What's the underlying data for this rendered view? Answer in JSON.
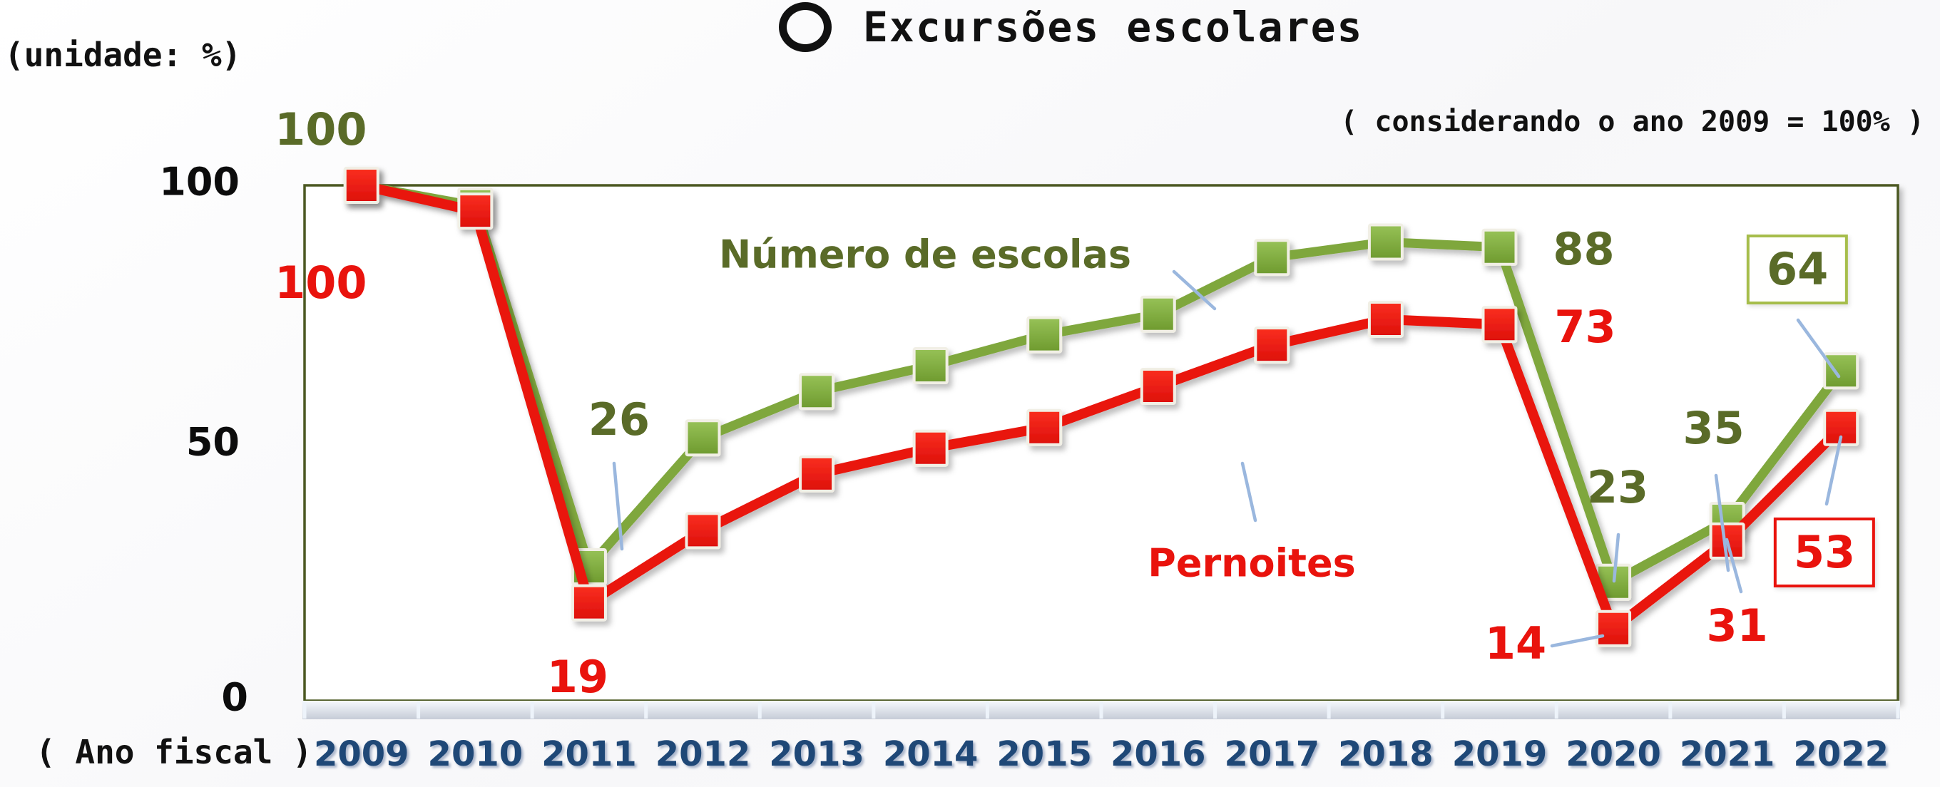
{
  "header": {
    "title_icon": "circle-icon",
    "title": "Excursões escolares",
    "unit_label": "(unidade: %)",
    "baseline_note": "( considerando o ano 2009 = 100% )"
  },
  "colors": {
    "olive_text": "#5A6B28",
    "green_line": "#7FA73E",
    "green_marker_top": "#97C257",
    "green_marker_bottom": "#6E9A2E",
    "green_box_border": "#A6BD4B",
    "red": "#E9130D",
    "red_marker_top": "#FA2F20",
    "red_marker_bottom": "#DD0F0B",
    "year_blue": "#1F4877",
    "callout_blue": "#9AB7DE",
    "frame_border": "#4C5824",
    "black": "#111111"
  },
  "chart_data": {
    "type": "line",
    "title": "Excursões escolares",
    "subtitle": "( considerando o ano 2009 = 100% )",
    "unit": "(unidade: %)",
    "xlabel": "( Ano fiscal )",
    "ylabel": "",
    "ylim": [
      0,
      100
    ],
    "y_ticks": [
      "100",
      "50",
      "0"
    ],
    "grid": false,
    "legend_position": "inline-labels",
    "categories": [
      "2009",
      "2010",
      "2011",
      "2012",
      "2013",
      "2014",
      "2015",
      "2016",
      "2017",
      "2018",
      "2019",
      "2020",
      "2021",
      "2022"
    ],
    "series": [
      {
        "name": "Número de escolas",
        "values": [
          100,
          96,
          26,
          51,
          60,
          65,
          71,
          75,
          86,
          89,
          88,
          23,
          35,
          64
        ]
      },
      {
        "name": "Pernoites",
        "values": [
          100,
          95,
          19,
          33,
          44,
          49,
          53,
          61,
          69,
          74,
          73,
          14,
          31,
          53
        ]
      }
    ],
    "annotations": [
      {
        "year": "2009",
        "series": 0,
        "text": "100",
        "boxed": false
      },
      {
        "year": "2009",
        "series": 1,
        "text": "100",
        "boxed": false
      },
      {
        "year": "2011",
        "series": 0,
        "text": "26",
        "boxed": false
      },
      {
        "year": "2011",
        "series": 1,
        "text": "19",
        "boxed": false
      },
      {
        "year": "2019",
        "series": 0,
        "text": "88",
        "boxed": false
      },
      {
        "year": "2019",
        "series": 1,
        "text": "73",
        "boxed": false
      },
      {
        "year": "2020",
        "series": 0,
        "text": "23",
        "boxed": false
      },
      {
        "year": "2020",
        "series": 1,
        "text": "14",
        "boxed": false
      },
      {
        "year": "2021",
        "series": 0,
        "text": "35",
        "boxed": false
      },
      {
        "year": "2021",
        "series": 1,
        "text": "31",
        "boxed": false
      },
      {
        "year": "2022",
        "series": 0,
        "text": "64",
        "boxed": true
      },
      {
        "year": "2022",
        "series": 1,
        "text": "53",
        "boxed": true
      }
    ]
  },
  "x_axis": {
    "label": "( Ano fiscal )"
  }
}
